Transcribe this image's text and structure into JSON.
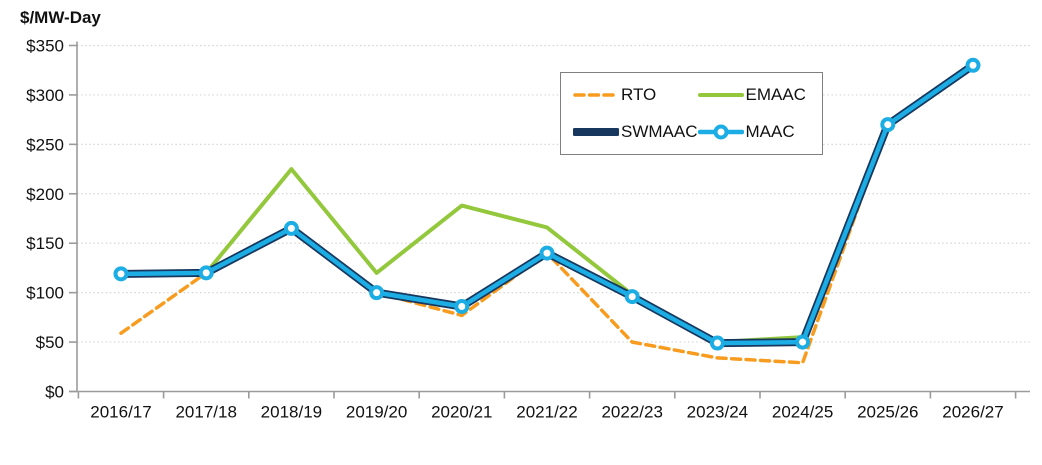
{
  "chart_data": {
    "type": "line",
    "title": "$/MW-Day",
    "categories": [
      "2016/17",
      "2017/18",
      "2018/19",
      "2019/20",
      "2020/21",
      "2021/22",
      "2022/23",
      "2023/24",
      "2024/25",
      "2025/26",
      "2026/27"
    ],
    "series": [
      {
        "name": "RTO",
        "color": "#F79C1F",
        "style": "dashed",
        "width": 3.5,
        "values": [
          59,
          120,
          165,
          100,
          77,
          140,
          50,
          34,
          29,
          270,
          330
        ]
      },
      {
        "name": "EMAAC",
        "color": "#93C83D",
        "style": "solid",
        "width": 4,
        "values": [
          null,
          120,
          225,
          120,
          188,
          166,
          98,
          50,
          55,
          270,
          330
        ]
      },
      {
        "name": "SWMAAC",
        "color": "#17375E",
        "style": "solid",
        "width": 8,
        "values": [
          119,
          120,
          165,
          100,
          86,
          140,
          96,
          49,
          50,
          270,
          330
        ]
      },
      {
        "name": "MAAC",
        "color": "#1CADE4",
        "style": "solid-circle",
        "width": 4.5,
        "values": [
          119,
          120,
          165,
          100,
          86,
          140,
          96,
          49,
          50,
          270,
          330
        ],
        "marker": {
          "shape": "circle",
          "fill": "#FFFFFF",
          "radius": 5.5,
          "stroke_width": 4
        }
      }
    ],
    "ylim": [
      0,
      350
    ],
    "ytick_step": 50,
    "ytick_labels": [
      "$0",
      "$50",
      "$100",
      "$150",
      "$200",
      "$250",
      "$300",
      "$350"
    ],
    "xlabel": "",
    "ylabel": "$/MW-Day",
    "grid": "horizontal-dotted",
    "legend_position": "inside-top-right",
    "colors": {
      "grid": "#D6D6D6",
      "axis": "#9B9B9B",
      "text": "#111111",
      "background": "#FFFFFF"
    }
  }
}
